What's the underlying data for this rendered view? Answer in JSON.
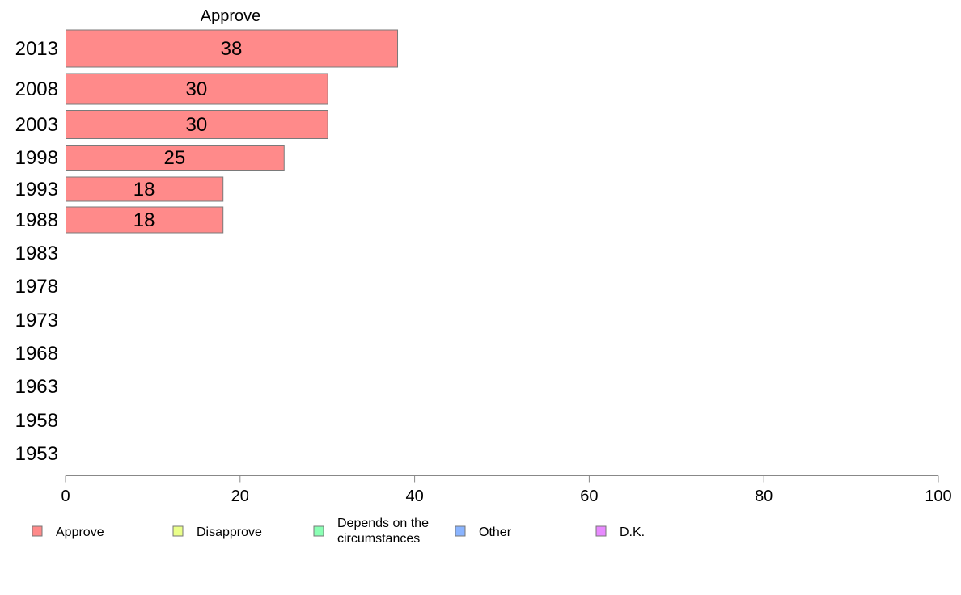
{
  "chart_data": {
    "type": "bar",
    "orientation": "horizontal",
    "title": "Approve",
    "categories": [
      "2013",
      "2008",
      "2003",
      "1998",
      "1993",
      "1988",
      "1983",
      "1978",
      "1973",
      "1968",
      "1963",
      "1958",
      "1953"
    ],
    "series": [
      {
        "name": "Approve",
        "values": [
          38,
          30,
          30,
          25,
          18,
          18,
          null,
          null,
          null,
          null,
          null,
          null,
          null
        ]
      }
    ],
    "data_labels": [
      "38",
      "30",
      "30",
      "25",
      "18",
      "18",
      "",
      "",
      "",
      "",
      "",
      "",
      ""
    ],
    "xlim": [
      0,
      100
    ],
    "xticks": [
      "0",
      "20",
      "40",
      "60",
      "80",
      "100"
    ],
    "grid": false,
    "legend_placement": "bottom",
    "legend": [
      {
        "label": "Approve",
        "color": "#ff8a8a"
      },
      {
        "label": "Disapprove",
        "color": "#eaff8a"
      },
      {
        "label": "Depends on the\ncircumstances",
        "color": "#8affb4"
      },
      {
        "label": "Other",
        "color": "#8ab4ff"
      },
      {
        "label": "D.K.",
        "color": "#e88aff"
      }
    ],
    "colors": {
      "bar_fill": "#ff8a8a",
      "bar_stroke": "#7a7a7a",
      "axis": "#888888"
    }
  }
}
